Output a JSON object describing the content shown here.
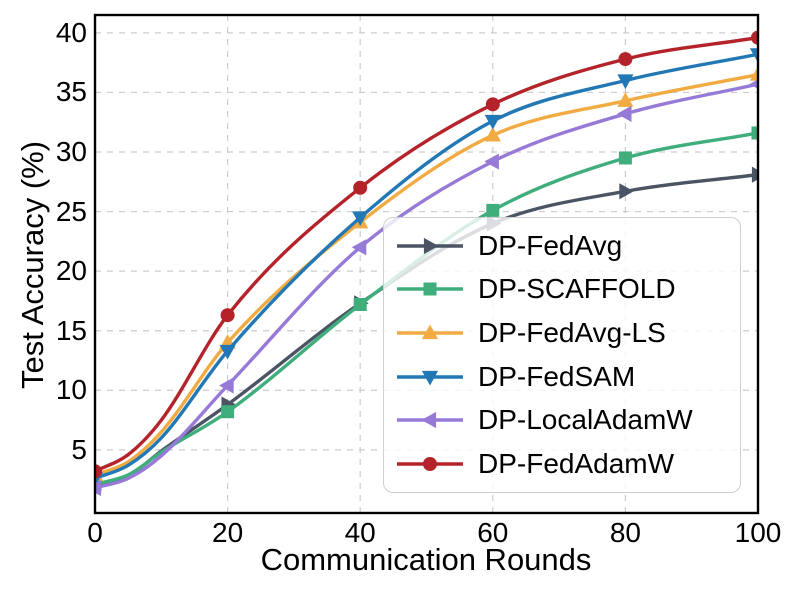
{
  "chart_data": {
    "type": "line",
    "title": "",
    "xlabel": "Communication Rounds",
    "ylabel": "Test Accuracy (%)",
    "xlim": [
      0,
      100
    ],
    "ylim": [
      -0.3,
      41.5
    ],
    "xticks": [
      0,
      20,
      40,
      60,
      80,
      100
    ],
    "yticks": [
      5,
      10,
      15,
      20,
      25,
      30,
      35,
      40
    ],
    "grid": true,
    "grid_style": "dashed",
    "legend_position": "center-right",
    "x": [
      0,
      5,
      10,
      20,
      40,
      60,
      80,
      100
    ],
    "marker_x": [
      0,
      20,
      40,
      60,
      80,
      100
    ],
    "series": [
      {
        "name": "DP-FedAvg",
        "color": "#4b5464",
        "marker": "triangle-right",
        "values": [
          2.0,
          2.8,
          4.9,
          8.8,
          17.3,
          24.0,
          26.7,
          28.1
        ]
      },
      {
        "name": "DP-SCAFFOLD",
        "color": "#3fae7c",
        "marker": "square",
        "values": [
          2.1,
          2.9,
          4.8,
          8.2,
          17.2,
          25.1,
          29.5,
          31.6
        ]
      },
      {
        "name": "DP-FedAvg-LS",
        "color": "#f1ab42",
        "marker": "triangle-up",
        "values": [
          2.9,
          4.0,
          6.5,
          14.0,
          24.1,
          31.4,
          34.3,
          36.5
        ]
      },
      {
        "name": "DP-FedSAM",
        "color": "#2278b5",
        "marker": "triangle-down",
        "values": [
          2.6,
          3.7,
          6.0,
          13.3,
          24.5,
          32.6,
          36.0,
          38.2
        ]
      },
      {
        "name": "DP-LocalAdamW",
        "color": "#977ad8",
        "marker": "triangle-left",
        "values": [
          1.8,
          2.6,
          4.5,
          10.4,
          22.0,
          29.2,
          33.2,
          35.7
        ]
      },
      {
        "name": "DP-FedAdamW",
        "color": "#b5232a",
        "marker": "circle",
        "values": [
          3.2,
          4.6,
          7.5,
          16.3,
          27.0,
          34.0,
          37.8,
          39.6
        ]
      }
    ],
    "colors": {
      "axis": "#000000",
      "grid": "#cccccc",
      "tick_text": "#000000",
      "legend_border": "#cfcfcf"
    }
  }
}
